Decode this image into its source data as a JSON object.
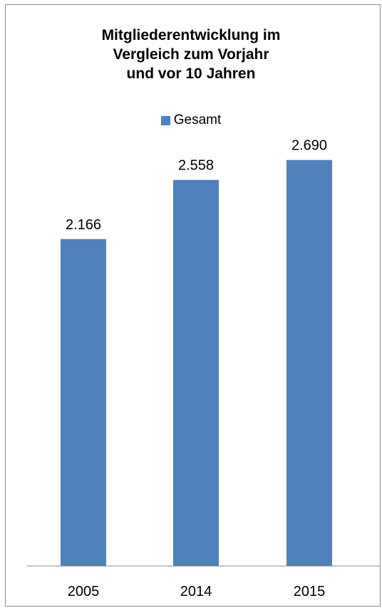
{
  "chart_data": {
    "type": "bar",
    "title_lines": [
      "Mitgliederentwicklung im",
      "Vergleich zum Vorjahr",
      "und vor 10 Jahren"
    ],
    "categories": [
      "2005",
      "2014",
      "2015"
    ],
    "series": [
      {
        "name": "Gesamt",
        "values": [
          2166,
          2558,
          2690
        ],
        "labels": [
          "2.166",
          "2.558",
          "2.690"
        ],
        "color": "#4f81bd"
      }
    ],
    "legend_position": "top",
    "grid": false,
    "ylim": [
      0,
      3000
    ]
  }
}
